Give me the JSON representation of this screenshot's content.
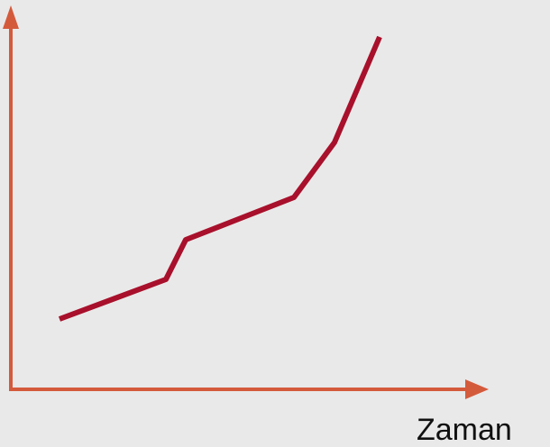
{
  "axis_label": "Zaman"
}
